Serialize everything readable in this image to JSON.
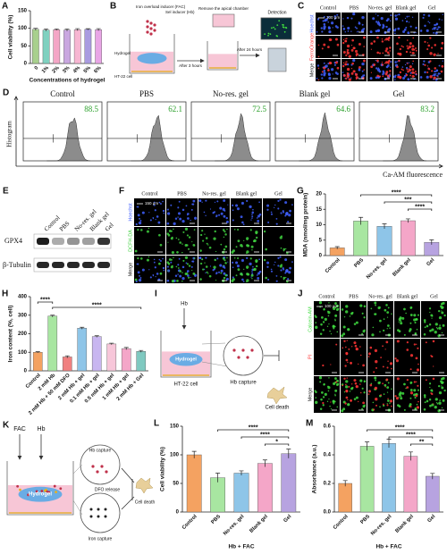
{
  "chart_data": [
    {
      "label": "A",
      "type": "bar",
      "ylabel": "Cell viability (%)",
      "xlabel": "Concentrations of hydrogel",
      "categories": [
        "0",
        "1%",
        "2%",
        "3%",
        "4%",
        "5%",
        "6%"
      ],
      "values": [
        97,
        95,
        96,
        95,
        96,
        97,
        96
      ],
      "errors": [
        3,
        3,
        2,
        3,
        3,
        2,
        3
      ],
      "colors": [
        "#a8d08d",
        "#7fd1c0",
        "#f4a6c6",
        "#c9a7e0",
        "#f7b6d2",
        "#a99be0",
        "#e9a6e6"
      ],
      "ylim": [
        0,
        150
      ],
      "yticks": [
        0,
        50,
        100,
        150
      ]
    },
    {
      "label": "G",
      "type": "bar",
      "ylabel": "MDA (nmol/mg protein)",
      "categories": [
        "Control",
        "PBS",
        "No-res. gel",
        "Blank gel",
        "Gel"
      ],
      "values": [
        2.5,
        11.2,
        9.5,
        11.3,
        4.3
      ],
      "errors": [
        0.4,
        1.2,
        0.8,
        0.6,
        0.8
      ],
      "colors": [
        "#f4a261",
        "#a8e6a1",
        "#8ec5e8",
        "#f4a6c8",
        "#b7a3e0"
      ],
      "ylim": [
        0,
        20
      ],
      "yticks": [
        0,
        5,
        10,
        15,
        20
      ],
      "annotations": [
        "****",
        "***",
        "****"
      ]
    },
    {
      "label": "H",
      "type": "bar",
      "ylabel": "Iron content (%, cell)",
      "categories": [
        "Control",
        "2 mM Hb",
        "2 mM Hb + 50 mM DFO",
        "2 mM Hb + gel",
        "0.1 mM Hb + gel",
        "0.5 mM Hb + gel",
        "1 mM Hb + gel",
        "2 mM Hb + Gel"
      ],
      "values": [
        100,
        295,
        75,
        230,
        185,
        145,
        120,
        105
      ],
      "errors": [
        3,
        5,
        6,
        5,
        4,
        4,
        6,
        5
      ],
      "colors": [
        "#f4a261",
        "#a8e6a1",
        "#f08080",
        "#8ec5e8",
        "#c8b6f0",
        "#f7c6d9",
        "#f4a6c8",
        "#7fc9c0"
      ],
      "ylim": [
        0,
        400
      ],
      "yticks": [
        0,
        100,
        200,
        300,
        400
      ],
      "annotations": [
        "****",
        "****"
      ]
    },
    {
      "label": "L",
      "type": "bar",
      "ylabel": "Cell viability (%)",
      "xlabel": "Hb + FAC",
      "categories": [
        "Control",
        "PBS",
        "No-res. gel",
        "Blank gel",
        "Gel"
      ],
      "values": [
        100,
        60,
        68,
        85,
        102
      ],
      "errors": [
        6,
        8,
        4,
        6,
        8
      ],
      "colors": [
        "#f4a261",
        "#a8e6a1",
        "#8ec5e8",
        "#f4a6c8",
        "#b7a3e0"
      ],
      "ylim": [
        0,
        150
      ],
      "yticks": [
        0,
        50,
        100,
        150
      ],
      "annotations": [
        "****",
        "****",
        "*"
      ]
    },
    {
      "label": "M",
      "type": "bar",
      "ylabel": "Absorbance (a.u.)",
      "xlabel": "Hb + FAC",
      "categories": [
        "Control",
        "PBS",
        "No-res. gel",
        "Blank gel",
        "Gel"
      ],
      "values": [
        0.2,
        0.46,
        0.48,
        0.39,
        0.25
      ],
      "errors": [
        0.02,
        0.03,
        0.03,
        0.03,
        0.02
      ],
      "colors": [
        "#f4a261",
        "#a8e6a1",
        "#8ec5e8",
        "#f4a6c8",
        "#b7a3e0"
      ],
      "ylim": [
        0,
        0.6
      ],
      "yticks": [
        {
          "value": 0,
          "label": "0.0"
        },
        0.2,
        0.4,
        0.6
      ],
      "annotations": [
        "****",
        "****",
        "**"
      ]
    }
  ],
  "scheme_b": {
    "label": "B",
    "fac": "Iron overload inducer (FAC)",
    "hb": "Sel inducer (Hb)",
    "hydrogel": "Hydrogel",
    "cell": "HT-22 cell",
    "step1": "After 3 hours",
    "remove": "Remove the apical chamber",
    "step2": "After 24 hours",
    "detection": "Detection"
  },
  "staining_c": {
    "label": "C",
    "columns": [
      "Control",
      "PBS",
      "No-res. gel",
      "Blank gel",
      "Gel"
    ],
    "rows": [
      "Hoechst",
      "FerroOrange",
      "Merge"
    ],
    "scale": "100 μm"
  },
  "flow_d": {
    "label": "D",
    "ylabel": "Histogram",
    "xlabel": "Ca-AM fluorescence",
    "groups": [
      "Control",
      "PBS",
      "No-res. gel",
      "Blank gel",
      "Gel"
    ],
    "percent": [
      88.5,
      62.1,
      72.5,
      64.6,
      83.2
    ]
  },
  "blot_e": {
    "label": "E",
    "lanes": [
      "Control",
      "PBS",
      "No-res. gel",
      "Blank gel",
      "Gel"
    ],
    "proteins": [
      "GPX4",
      "β-Tubulin"
    ]
  },
  "staining_f": {
    "label": "F",
    "columns": [
      "Control",
      "PBS",
      "No-res. gel",
      "Blank gel",
      "Gel"
    ],
    "rows": [
      "Hoechst",
      "DCFH-DA",
      "Merge"
    ],
    "scale": "150 μm"
  },
  "scheme_i": {
    "label": "I",
    "hb": "Hb",
    "hydrogel": "Hydrogel",
    "cell": "HT-22 cell",
    "capture": "Hb capture",
    "death": "Cell death"
  },
  "staining_j": {
    "label": "J",
    "columns": [
      "Control",
      "PBS",
      "No-res. gel",
      "Blank gel",
      "Gel"
    ],
    "rows": [
      "Calcein-AM",
      "PI",
      "Merge"
    ],
    "scale": "100 μm"
  },
  "scheme_k": {
    "label": "K",
    "fac": "FAC",
    "hb": "Hb",
    "hydrogel": "Hydrogel",
    "capture": "Hb capture",
    "release": "DFO release",
    "iron": "Iron capture",
    "death": "Cell death"
  }
}
